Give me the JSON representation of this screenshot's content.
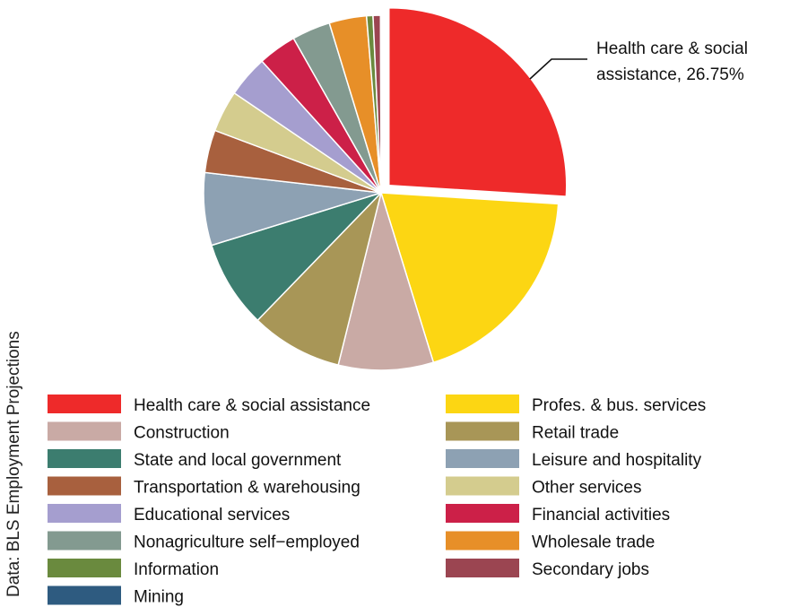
{
  "chart_data": {
    "type": "pie",
    "source": "Data: BLS Employment Projections",
    "annotation": {
      "line1": "Health care & social",
      "line2": "assistance, 26.75%"
    },
    "slices": [
      {
        "name": "Health care & social assistance",
        "value": 26.75,
        "color": "#ee2a2a",
        "exploded": true
      },
      {
        "name": "Profes. & bus. services",
        "value": 19.8,
        "color": "#fcd613"
      },
      {
        "name": "Construction",
        "value": 8.9,
        "color": "#c9aaa5"
      },
      {
        "name": "Retail trade",
        "value": 8.6,
        "color": "#a89657"
      },
      {
        "name": "State and local government",
        "value": 8.2,
        "color": "#3c7d6f"
      },
      {
        "name": "Leisure and hospitality",
        "value": 6.8,
        "color": "#8da1b3"
      },
      {
        "name": "Transportation & warehousing",
        "value": 4.0,
        "color": "#a8603e"
      },
      {
        "name": "Other services",
        "value": 3.9,
        "color": "#d4cc8e"
      },
      {
        "name": "Educational services",
        "value": 3.9,
        "color": "#a59ecf"
      },
      {
        "name": "Financial activities",
        "value": 3.6,
        "color": "#cc2048"
      },
      {
        "name": "Nonagriculture self−employed",
        "value": 3.6,
        "color": "#839a90"
      },
      {
        "name": "Wholesale trade",
        "value": 3.5,
        "color": "#e78f28"
      },
      {
        "name": "Information",
        "value": 0.6,
        "color": "#6a8a3e"
      },
      {
        "name": "Secondary jobs",
        "value": 0.7,
        "color": "#9b4551"
      },
      {
        "name": "Mining",
        "value": 0.05,
        "color": "#2e5b80"
      }
    ],
    "legend": [
      {
        "name": "Health care & social assistance",
        "color": "#ee2a2a"
      },
      {
        "name": "Profes. & bus. services",
        "color": "#fcd613"
      },
      {
        "name": "Construction",
        "color": "#c9aaa5"
      },
      {
        "name": "Retail trade",
        "color": "#a89657"
      },
      {
        "name": "State and local government",
        "color": "#3c7d6f"
      },
      {
        "name": "Leisure and hospitality",
        "color": "#8da1b3"
      },
      {
        "name": "Transportation & warehousing",
        "color": "#a8603e"
      },
      {
        "name": "Other services",
        "color": "#d4cc8e"
      },
      {
        "name": "Educational services",
        "color": "#a59ecf"
      },
      {
        "name": "Financial activities",
        "color": "#cc2048"
      },
      {
        "name": "Nonagriculture self−employed",
        "color": "#839a90"
      },
      {
        "name": "Wholesale trade",
        "color": "#e78f28"
      },
      {
        "name": "Information",
        "color": "#6a8a3e"
      },
      {
        "name": "Secondary jobs",
        "color": "#9b4551"
      },
      {
        "name": "Mining",
        "color": "#2e5b80"
      }
    ]
  }
}
